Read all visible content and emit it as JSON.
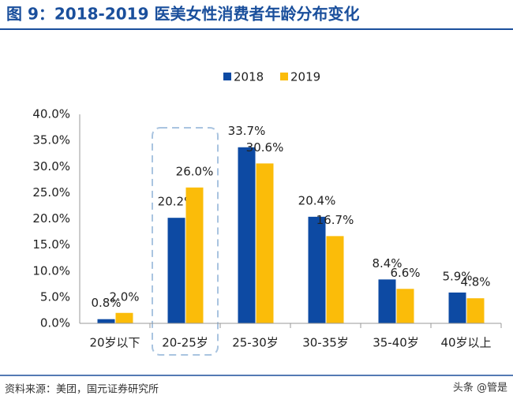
{
  "title": "图 9：2018-2019 医美女性消费者年龄分布变化",
  "source": "资料来源：美团，国元证券研究所",
  "watermark": "头条 @管是",
  "chart_data": {
    "type": "bar",
    "categories": [
      "20岁以下",
      "20-25岁",
      "25-30岁",
      "30-35岁",
      "35-40岁",
      "40岁以上"
    ],
    "series": [
      {
        "name": "2018",
        "color": "#0d4aa3",
        "values": [
          0.8,
          20.2,
          33.7,
          20.4,
          8.4,
          5.9
        ],
        "value_labels": [
          "0.8%",
          "20.2%",
          "33.7%",
          "20.4%",
          "8.4%",
          "5.9%"
        ]
      },
      {
        "name": "2019",
        "color": "#fbbc09",
        "values": [
          2.0,
          26.0,
          30.6,
          16.7,
          6.6,
          4.8
        ],
        "value_labels": [
          "2.0%",
          "26.0%",
          "30.6%",
          "16.7%",
          "6.6%",
          "4.8%"
        ]
      }
    ],
    "ylim": [
      0,
      40
    ],
    "yticks": [
      {
        "value": 0,
        "label": "0.0%"
      },
      {
        "value": 5,
        "label": "5.0%"
      },
      {
        "value": 10,
        "label": "10.0%"
      },
      {
        "value": 15,
        "label": "15.0%"
      },
      {
        "value": 20,
        "label": "20.0%"
      },
      {
        "value": 25,
        "label": "25.0%"
      },
      {
        "value": 30,
        "label": "30.0%"
      },
      {
        "value": 35,
        "label": "35.0%"
      },
      {
        "value": 40,
        "label": "40.0%"
      }
    ],
    "legend": "top"
  }
}
